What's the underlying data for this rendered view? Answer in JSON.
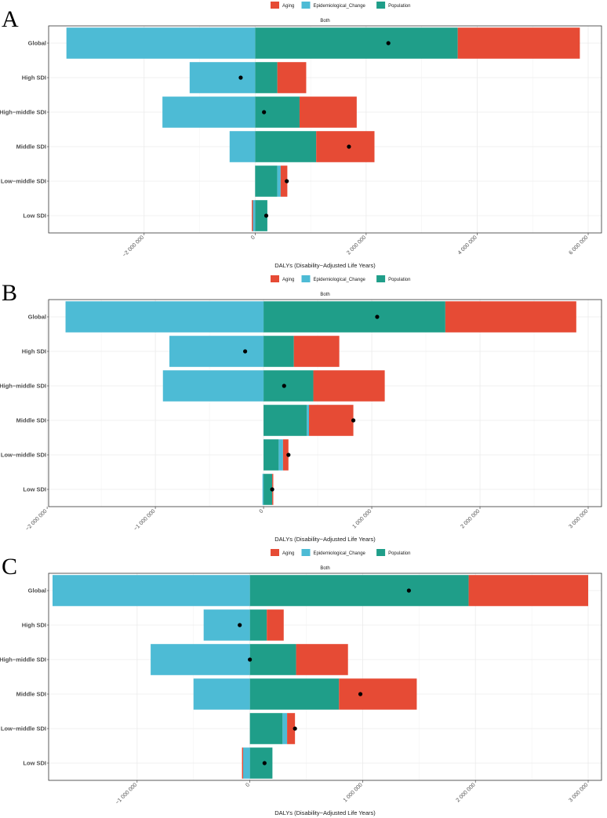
{
  "chart_data": [
    {
      "type": "bar",
      "panel": "A",
      "strip_label": "Both",
      "xlabel": "DALYs (Disability−Adjusted Life Years)",
      "xlim": [
        -3650000,
        6000000
      ],
      "ticks": [
        -2000000,
        0,
        2000000,
        4000000,
        6000000
      ],
      "tick_labels": [
        "−2 000 000",
        "0",
        "2 000 000",
        "4 000 000",
        "6 000 000"
      ],
      "categories": [
        "Global",
        "High SDI",
        "High−middle SDI",
        "Middle SDI",
        "Low−middle SDI",
        "Low SDI"
      ],
      "series": [
        {
          "name": "Population",
          "values": [
            3650000,
            400000,
            800000,
            1100000,
            400000,
            220000
          ]
        },
        {
          "name": "Epidemiological_Change",
          "values": [
            -3400000,
            -1180000,
            -1670000,
            -460000,
            60000,
            -40000
          ]
        },
        {
          "name": "Aging",
          "values": [
            2200000,
            520000,
            1030000,
            1050000,
            120000,
            -20000
          ]
        }
      ],
      "net_change": [
        2400000,
        -260000,
        160000,
        1690000,
        570000,
        200000
      ]
    },
    {
      "type": "bar",
      "panel": "B",
      "strip_label": "Both",
      "xlabel": "DALYs (Disability−Adjusted Life Years)",
      "xlim": [
        -1950000,
        3000000
      ],
      "ticks": [
        -2000000,
        -1000000,
        0,
        1000000,
        2000000,
        3000000
      ],
      "tick_labels": [
        "−2 000 000",
        "−1 000 000",
        "0",
        "1 000 000",
        "2 000 000",
        "3 000 000"
      ],
      "categories": [
        "Global",
        "High SDI",
        "High−middle SDI",
        "Middle SDI",
        "Low−middle SDI",
        "Low SDI"
      ],
      "series": [
        {
          "name": "Population",
          "values": [
            1680000,
            280000,
            460000,
            400000,
            140000,
            80000
          ]
        },
        {
          "name": "Epidemiological_Change",
          "values": [
            -1830000,
            -870000,
            -930000,
            20000,
            40000,
            -10000
          ]
        },
        {
          "name": "Aging",
          "values": [
            1210000,
            420000,
            660000,
            410000,
            50000,
            10000
          ]
        }
      ],
      "net_change": [
        1050000,
        -170000,
        190000,
        830000,
        230000,
        80000
      ]
    },
    {
      "type": "bar",
      "panel": "C",
      "strip_label": "Both",
      "xlabel": "DALYs (Disability−Adjusted Life Years)",
      "xlim": [
        -1750000,
        3000000
      ],
      "ticks": [
        -1000000,
        0,
        1000000,
        2000000,
        3000000
      ],
      "tick_labels": [
        "−1 000 000",
        "0",
        "1 000 000",
        "2 000 000",
        "3 000 000"
      ],
      "categories": [
        "Global",
        "High SDI",
        "High−middle SDI",
        "Middle SDI",
        "Low−middle SDI",
        "Low SDI"
      ],
      "series": [
        {
          "name": "Population",
          "values": [
            1940000,
            150000,
            410000,
            790000,
            290000,
            200000
          ]
        },
        {
          "name": "Epidemiological_Change",
          "values": [
            -1750000,
            -410000,
            -880000,
            -500000,
            40000,
            -60000
          ]
        },
        {
          "name": "Aging",
          "values": [
            1060000,
            150000,
            460000,
            690000,
            70000,
            -10000
          ]
        }
      ],
      "net_change": [
        1410000,
        -90000,
        0,
        980000,
        400000,
        130000
      ]
    }
  ],
  "legend": [
    {
      "name": "Aging",
      "color": "#e64b35"
    },
    {
      "name": "Epidemiological_Change",
      "color": "#4dbbd5"
    },
    {
      "name": "Population",
      "color": "#1f9e89"
    }
  ]
}
